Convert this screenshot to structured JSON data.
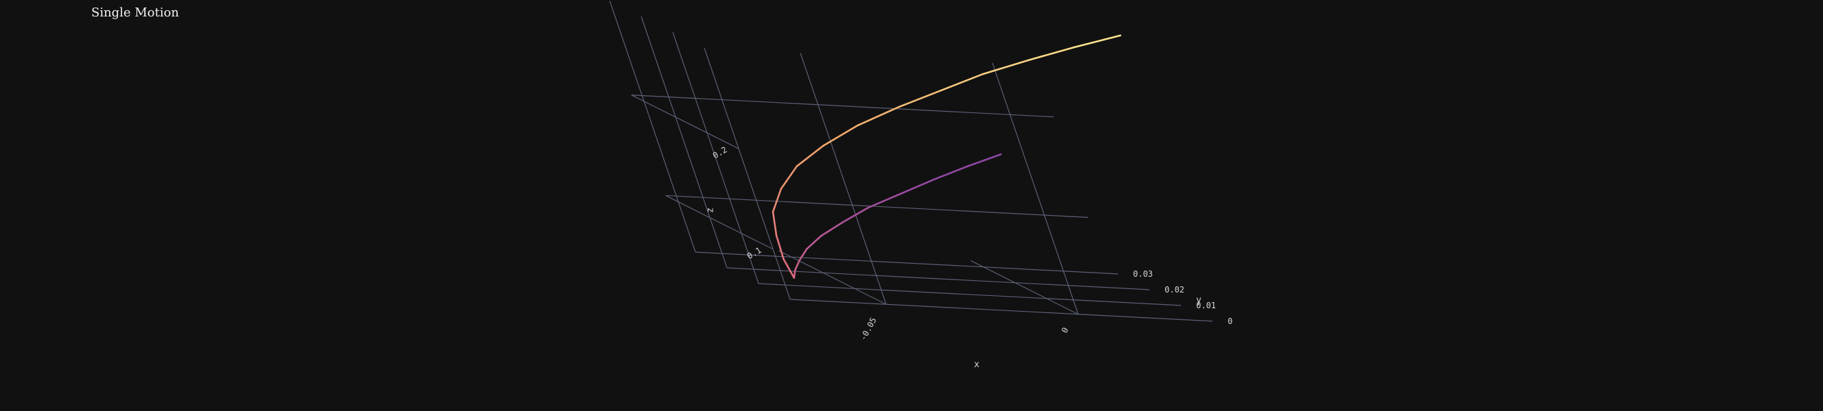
{
  "chart_data": {
    "type": "line3d",
    "title": "Single Motion",
    "xlabel": "x",
    "ylabel": "y",
    "zlabel": "z",
    "x_ticks": [
      "-0.05",
      "0"
    ],
    "y_ticks": [
      "0",
      "0.01",
      "0.02",
      "0.03"
    ],
    "z_ticks": [
      "0.1",
      "0.2"
    ],
    "grid": true,
    "colorscale": [
      "#6a3fb0",
      "#9a4aa2",
      "#d96b82",
      "#f2a56a",
      "#fde88f"
    ],
    "series": [
      {
        "x": [
          -0.072,
          -0.071,
          -0.069,
          -0.066,
          -0.061,
          -0.054,
          -0.046,
          -0.036,
          -0.026,
          -0.016,
          -0.006
        ],
        "y": [
          0.0,
          0.0,
          0.0,
          0.0,
          0.0,
          0.0,
          0.0,
          0.0,
          0.0,
          0.0,
          0.0
        ],
        "z": [
          0.072,
          0.08,
          0.09,
          0.102,
          0.116,
          0.131,
          0.147,
          0.163,
          0.179,
          0.194,
          0.208
        ]
      },
      {
        "x": [
          -0.072,
          -0.071,
          -0.068,
          -0.064,
          -0.057,
          -0.048,
          -0.037,
          -0.024,
          -0.01,
          0.004,
          0.018,
          0.032,
          0.046,
          0.06
        ],
        "y": [
          0.0,
          0.003,
          0.007,
          0.011,
          0.015,
          0.019,
          0.022,
          0.025,
          0.027,
          0.029,
          0.031,
          0.032,
          0.033,
          0.034
        ],
        "z": [
          0.072,
          0.086,
          0.104,
          0.122,
          0.14,
          0.158,
          0.176,
          0.194,
          0.212,
          0.228,
          0.244,
          0.259,
          0.273,
          0.286
        ]
      }
    ]
  }
}
